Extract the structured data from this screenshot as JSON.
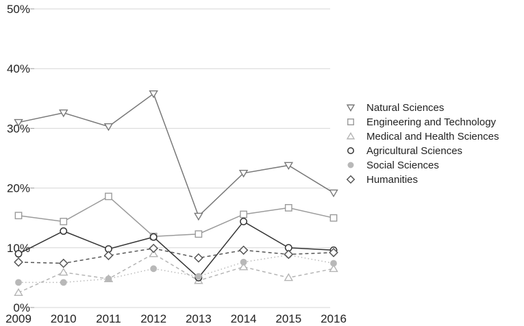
{
  "chart_data": {
    "type": "line",
    "title": "",
    "xlabel": "",
    "ylabel": "",
    "ylim": [
      0,
      50
    ],
    "y_ticks": [
      0,
      10,
      20,
      30,
      40,
      50
    ],
    "y_tick_labels": [
      "0%",
      "10%",
      "20%",
      "30%",
      "40%",
      "50%"
    ],
    "grid": "horizontal",
    "legend_position": "right",
    "x": [
      "2009",
      "2010",
      "2011",
      "2012",
      "2013",
      "2014",
      "2015",
      "2016"
    ],
    "series": [
      {
        "name": "Natural Sciences",
        "marker": "triangle-down",
        "color": "#777777",
        "dash": "solid",
        "values": [
          31.0,
          32.6,
          30.3,
          35.8,
          15.3,
          22.5,
          23.8,
          19.2
        ]
      },
      {
        "name": "Engineering and Technology",
        "marker": "square",
        "color": "#9a9a9a",
        "dash": "solid",
        "values": [
          15.4,
          14.4,
          18.6,
          11.9,
          12.3,
          15.6,
          16.7,
          15.0
        ]
      },
      {
        "name": "Medical and Health Sciences",
        "marker": "triangle-up",
        "color": "#b4b4b4",
        "dash": "dashed",
        "values": [
          2.5,
          5.9,
          4.8,
          9.0,
          4.5,
          6.8,
          5.0,
          6.5
        ]
      },
      {
        "name": "Agricultural Sciences",
        "marker": "circle",
        "color": "#333333",
        "dash": "solid",
        "values": [
          9.0,
          12.8,
          9.8,
          11.8,
          5.0,
          14.4,
          10.0,
          9.6
        ]
      },
      {
        "name": "Social Sciences",
        "marker": "filled-circle",
        "color": "#b8b8b8",
        "dash": "dotted",
        "values": [
          4.2,
          4.2,
          4.8,
          6.5,
          5.2,
          7.6,
          8.8,
          7.4
        ]
      },
      {
        "name": "Humanities",
        "marker": "diamond",
        "color": "#555555",
        "dash": "dashed",
        "values": [
          7.6,
          7.4,
          8.7,
          9.9,
          8.3,
          9.6,
          8.9,
          9.2
        ]
      }
    ]
  }
}
